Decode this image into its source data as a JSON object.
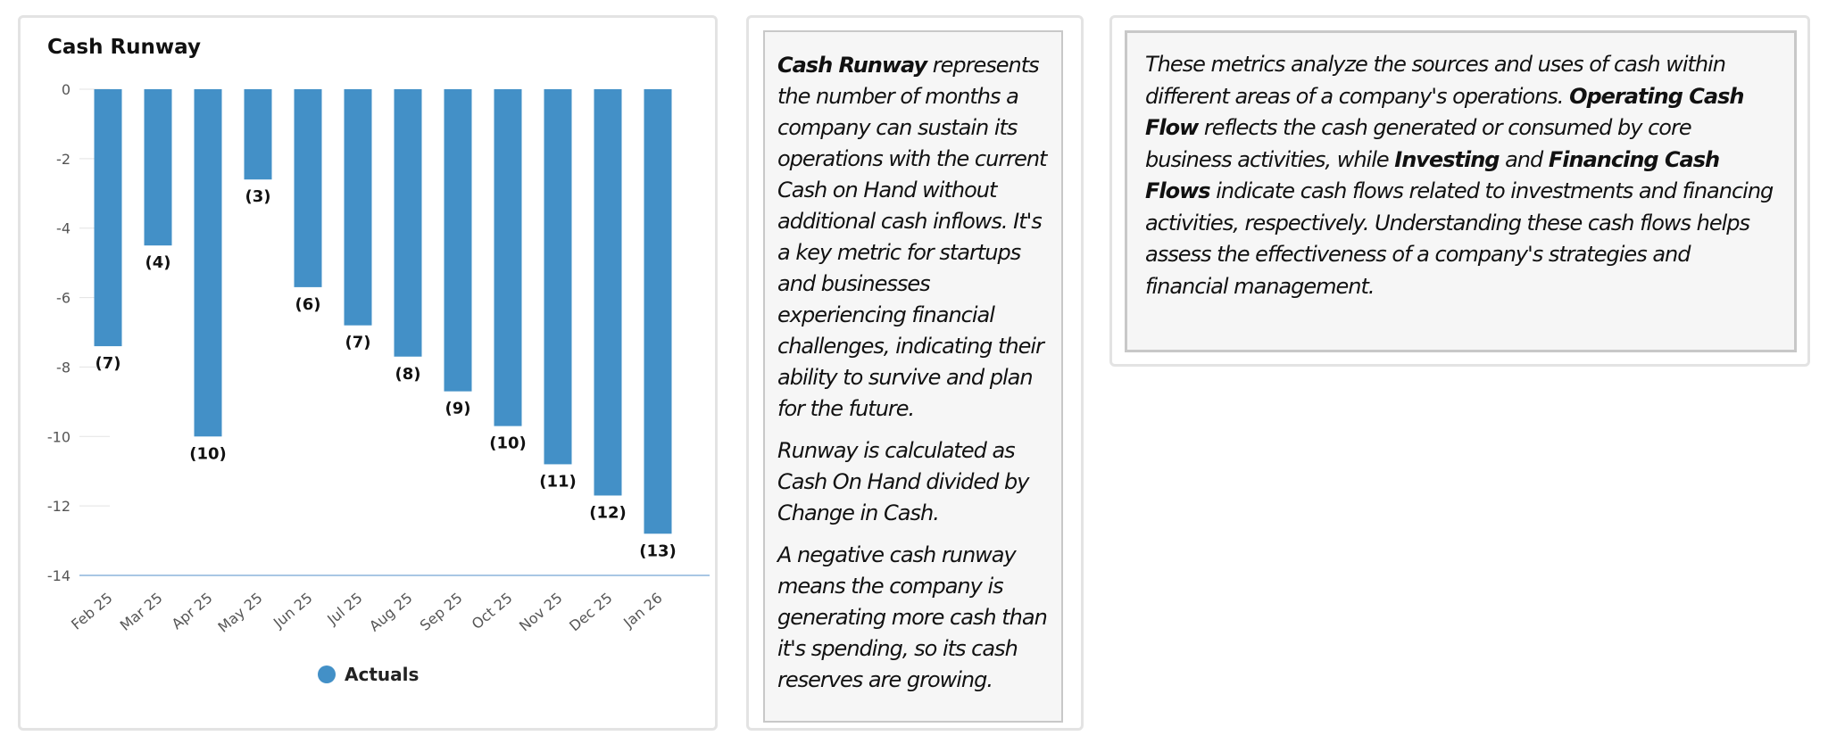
{
  "chart_data": {
    "type": "bar",
    "title": "Cash Runway",
    "categories": [
      "Feb 25",
      "Mar 25",
      "Apr 25",
      "May 25",
      "Jun 25",
      "Jul 25",
      "Aug 25",
      "Sep 25",
      "Oct 25",
      "Nov 25",
      "Dec 25",
      "Jan 26"
    ],
    "series": [
      {
        "name": "Actuals",
        "values": [
          -7.4,
          -4.5,
          -10.0,
          -2.6,
          -5.7,
          -6.8,
          -7.7,
          -8.7,
          -9.7,
          -10.8,
          -11.7,
          -12.8
        ],
        "labels": [
          "(7)",
          "(4)",
          "(10)",
          "(3)",
          "(6)",
          "(7)",
          "(8)",
          "(9)",
          "(10)",
          "(11)",
          "(12)",
          "(13)"
        ]
      }
    ],
    "yticks": [
      "0",
      "-2",
      "-4",
      "-6",
      "-8",
      "-10",
      "-12",
      "-14"
    ],
    "ytick_values": [
      0,
      -2,
      -4,
      -6,
      -8,
      -10,
      -12,
      -14
    ],
    "ylim": [
      -14,
      0
    ],
    "xlabel": "",
    "ylabel": "",
    "legend": "bottom-center",
    "bar_color": "#4390c7"
  },
  "description": {
    "p1_bold": "Cash Runway",
    "p1_rest": " represents the number of months a company can sustain its operations with the current Cash on Hand without additional cash inflows. It's a key metric for startups and businesses experiencing financial challenges, indicating their ability to survive and plan for the future.",
    "p2": "Runway is calculated as Cash On Hand divided by Change in Cash.",
    "p3": "A negative cash runway means the company is generating more cash than it's spending, so its cash reserves are growing."
  },
  "metrics": {
    "t1": "These metrics analyze the sources and uses of cash within different areas of a company's operations. ",
    "b1": "Operating Cash Flow",
    "t2": " reflects the cash generated or consumed by core business activities, while ",
    "b2": "Investing",
    "t3": " and ",
    "b3": "Financing Cash Flows",
    "t4": " indicate cash flows related to investments and financing activities, respectively. Understanding these cash flows helps assess the effectiveness of a company's strategies and financial management."
  }
}
